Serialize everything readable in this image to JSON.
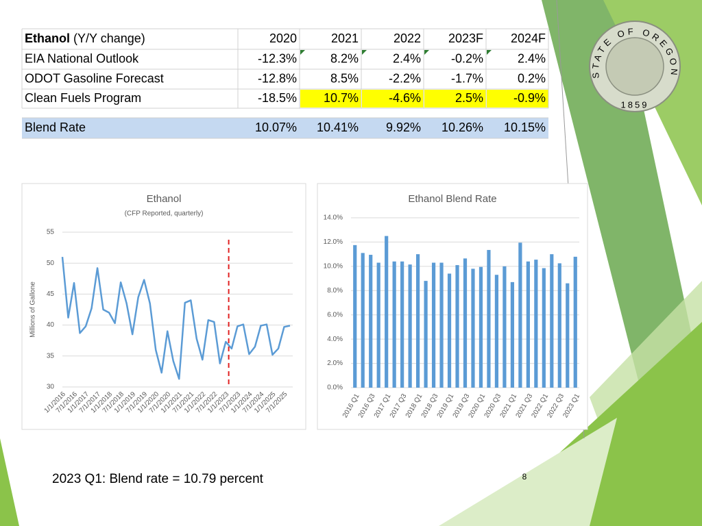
{
  "table": {
    "header": [
      "Ethanol",
      "(Y/Y change)",
      "2020",
      "2021",
      "2022",
      "2023F",
      "2024F"
    ],
    "rows": [
      [
        "EIA National Outlook",
        "-12.3%",
        "8.2%",
        "2.4%",
        "-0.2%",
        "2.4%"
      ],
      [
        "ODOT Gasoline Forecast",
        "-12.8%",
        "8.5%",
        "-2.2%",
        "-1.7%",
        "0.2%"
      ],
      [
        "Clean Fuels Program",
        "-18.5%",
        "10.7%",
        "-4.6%",
        "2.5%",
        "-0.9%"
      ],
      [
        "Blend Rate",
        "10.07%",
        "10.41%",
        "9.92%",
        "10.26%",
        "10.15%"
      ]
    ]
  },
  "chart_data": [
    {
      "type": "line",
      "title": "Ethanol",
      "subtitle": "(CFP Reported, quarterly)",
      "y_label": "Millions of Gallone",
      "categories": [
        "1/1/2016",
        null,
        "7/1/2016",
        null,
        "1/1/2017",
        null,
        "7/1/2017",
        null,
        "1/1/2018",
        null,
        "7/1/2018",
        null,
        "1/1/2019",
        null,
        "7/1/2019",
        null,
        "1/1/2020",
        null,
        "7/1/2020",
        null,
        "1/1/2021",
        null,
        "7/1/2021",
        null,
        "1/1/2022",
        null,
        "7/1/2022",
        null,
        "1/1/2023",
        null,
        "7/1/2023",
        null,
        "1/1/2024",
        null,
        "7/1/2024",
        null,
        "1/1/2025",
        null,
        "7/1/2025",
        null
      ],
      "values": [
        51,
        41.2,
        46.8,
        38.7,
        39.8,
        42.7,
        49.2,
        42.5,
        42.0,
        40.3,
        46.9,
        43.5,
        38.5,
        44.5,
        47.3,
        43.5,
        36,
        32.3,
        39,
        34.2,
        31.3,
        43.6,
        44,
        37.8,
        34.4,
        40.8,
        40.5,
        33.8,
        37.3,
        36.2,
        39.8,
        40.1,
        35.3,
        36.5,
        39.9,
        40.1,
        35.2,
        36.2,
        39.7,
        39.9
      ],
      "color": "#5b9bd5",
      "ylim": [
        30,
        55
      ],
      "yticks": [
        30,
        35,
        40,
        45,
        50,
        55
      ],
      "grid": true
    },
    {
      "type": "bar",
      "title": "Ethanol Blend Rate",
      "categories": [
        "2016 Q1",
        null,
        "2016 Q3",
        null,
        "2017 Q1",
        null,
        "2017 Q3",
        null,
        "2018 Q1",
        null,
        "2018 Q3",
        null,
        "2019 Q1",
        null,
        "2019 Q3",
        null,
        "2020 Q1",
        null,
        "2020 Q3",
        null,
        "2021 Q1",
        null,
        "2021 Q3",
        null,
        "2022 Q1",
        null,
        "2022 Q3",
        null,
        "2023 Q1"
      ],
      "values": [
        11.75,
        11.1,
        10.95,
        10.3,
        12.5,
        10.4,
        10.4,
        10.15,
        11.0,
        8.8,
        10.3,
        10.3,
        9.4,
        10.1,
        10.65,
        9.8,
        9.95,
        11.35,
        9.3,
        10.0,
        8.7,
        11.95,
        10.4,
        10.55,
        9.85,
        11.0,
        10.25,
        8.6,
        10.79
      ],
      "color": "#5b9bd5",
      "ylim": [
        0,
        14
      ],
      "yticks": [
        {
          "value": 0,
          "label": "0.0%"
        },
        {
          "value": 2,
          "label": "2.0%"
        },
        {
          "value": 4,
          "label": "4.0%"
        },
        {
          "value": 6,
          "label": "6.0%"
        },
        {
          "value": 8,
          "label": "8.0%"
        },
        {
          "value": 10,
          "label": "10.0%"
        },
        {
          "value": 12,
          "label": "12.0%"
        },
        {
          "value": 14,
          "label": "14.0%"
        }
      ],
      "grid": true
    }
  ],
  "footnote": "2023 Q1: Blend rate = 10.79 percent",
  "page_number": "8",
  "seal": {
    "text": "STATE OF OREGON",
    "year": "1859"
  }
}
